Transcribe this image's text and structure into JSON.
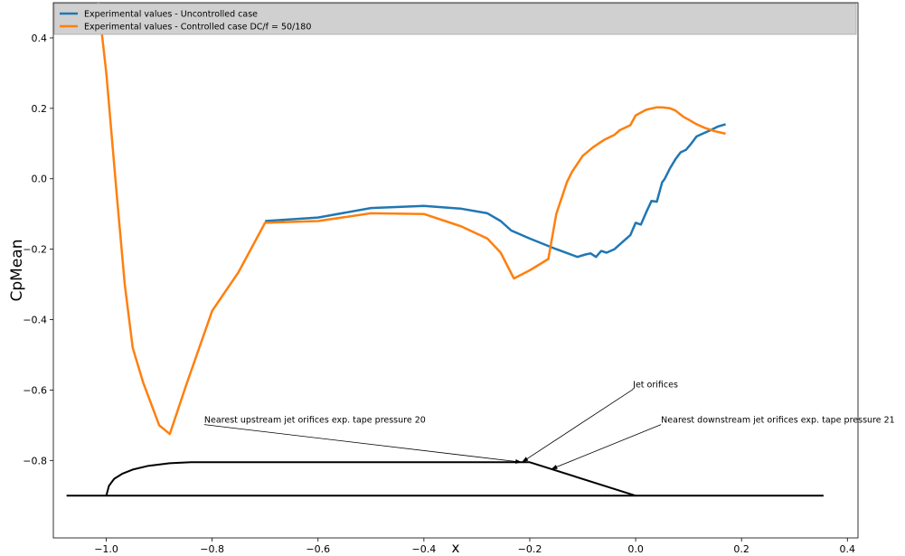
{
  "chart_data": {
    "type": "line",
    "xlabel": "x",
    "ylabel": "CpMean",
    "xlim": [
      -1.1,
      0.42
    ],
    "ylim": [
      -1.02,
      0.5
    ],
    "xticks": [
      -1.0,
      -0.8,
      -0.6,
      -0.4,
      -0.2,
      0.0,
      0.2,
      0.4
    ],
    "yticks": [
      -0.8,
      -0.6,
      -0.4,
      -0.2,
      0.0,
      0.2,
      0.4
    ],
    "xtick_labels": [
      "−1.0",
      "−0.8",
      "−0.6",
      "−0.4",
      "−0.2",
      "0.0",
      "0.2",
      "0.4"
    ],
    "ytick_labels": [
      "−0.8",
      "−0.6",
      "−0.4",
      "−0.2",
      "0.0",
      "0.2",
      "0.4"
    ],
    "grid": false,
    "legend_position": "top",
    "series": [
      {
        "name": "Experimental values - Uncontrolled case",
        "color": "#1f77b4",
        "x": [
          -0.7,
          -0.6,
          -0.5,
          -0.4,
          -0.33,
          -0.28,
          -0.255,
          -0.235,
          -0.2,
          -0.15,
          -0.11,
          -0.095,
          -0.085,
          -0.075,
          -0.065,
          -0.055,
          -0.04,
          -0.025,
          -0.01,
          0.0,
          0.01,
          0.02,
          0.03,
          0.04,
          0.05,
          0.055,
          0.065,
          0.075,
          0.085,
          0.095,
          0.105,
          0.115,
          0.125,
          0.14,
          0.155,
          0.17
        ],
        "y": [
          -0.12,
          -0.11,
          -0.083,
          -0.077,
          -0.085,
          -0.098,
          -0.12,
          -0.147,
          -0.17,
          -0.2,
          -0.222,
          -0.215,
          -0.212,
          -0.222,
          -0.205,
          -0.21,
          -0.2,
          -0.18,
          -0.16,
          -0.125,
          -0.13,
          -0.095,
          -0.063,
          -0.065,
          -0.01,
          0.0,
          0.03,
          0.055,
          0.075,
          0.082,
          0.1,
          0.12,
          0.127,
          0.137,
          0.148,
          0.155
        ]
      },
      {
        "name": "Experimental values - Controlled case DC/f = 50/180",
        "color": "#ff7f0e",
        "x": [
          -1.015,
          -1.0,
          -0.98,
          -0.965,
          -0.95,
          -0.93,
          -0.9,
          -0.88,
          -0.85,
          -0.8,
          -0.75,
          -0.7,
          -0.6,
          -0.5,
          -0.4,
          -0.33,
          -0.28,
          -0.255,
          -0.23,
          -0.2,
          -0.165,
          -0.15,
          -0.13,
          -0.12,
          -0.1,
          -0.08,
          -0.06,
          -0.04,
          -0.03,
          -0.01,
          0.0,
          0.02,
          0.04,
          0.05,
          0.065,
          0.075,
          0.09,
          0.1,
          0.115,
          0.13,
          0.15,
          0.17
        ],
        "y": [
          0.5,
          0.3,
          -0.05,
          -0.3,
          -0.48,
          -0.58,
          -0.7,
          -0.725,
          -0.59,
          -0.375,
          -0.265,
          -0.125,
          -0.12,
          -0.098,
          -0.1,
          -0.135,
          -0.17,
          -0.21,
          -0.283,
          -0.26,
          -0.228,
          -0.1,
          -0.01,
          0.02,
          0.065,
          0.09,
          0.11,
          0.125,
          0.138,
          0.152,
          0.18,
          0.196,
          0.203,
          0.203,
          0.2,
          0.194,
          0.176,
          0.168,
          0.155,
          0.145,
          0.135,
          0.128
        ]
      }
    ],
    "geometry": {
      "color": "#000000",
      "baseline": {
        "x": [
          -1.075,
          0.355
        ],
        "y": [
          -0.9,
          -0.9
        ]
      },
      "profile": {
        "x": [
          -1.0,
          -0.995,
          -0.985,
          -0.97,
          -0.95,
          -0.92,
          -0.88,
          -0.84,
          -0.8,
          -0.2,
          0.0
        ],
        "y": [
          -0.9,
          -0.872,
          -0.852,
          -0.838,
          -0.826,
          -0.815,
          -0.808,
          -0.805,
          -0.805,
          -0.805,
          -0.9
        ]
      }
    },
    "annotations": [
      {
        "text": "Jet orifices",
        "text_x": -0.005,
        "text_y": -0.593,
        "target_x": -0.215,
        "target_y": -0.805
      },
      {
        "text": "Nearest upstream jet orifices exp. tape pressure 20",
        "text_x": -0.815,
        "text_y": -0.693,
        "target_x": -0.215,
        "target_y": -0.805
      },
      {
        "text": "Nearest downstream jet orifices exp. tape pressure 21",
        "text_x": 0.048,
        "text_y": -0.693,
        "target_x": -0.16,
        "target_y": -0.825
      }
    ]
  }
}
